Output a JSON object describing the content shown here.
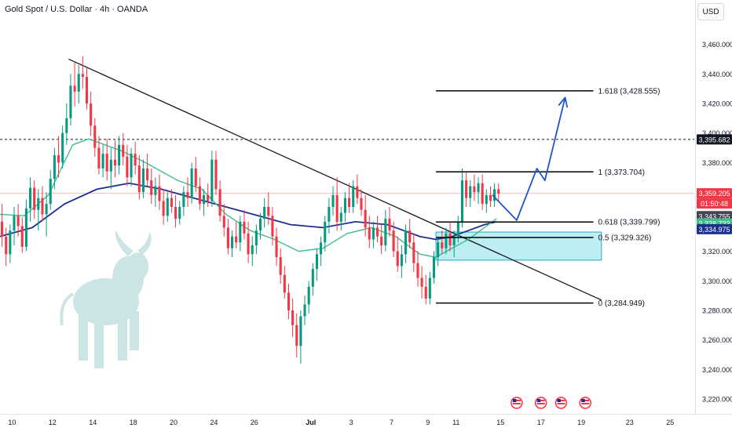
{
  "header": {
    "title": "Gold Spot / U.S. Dollar · 4h · OANDA",
    "currency": "USD"
  },
  "colors": {
    "bull": "#089981",
    "bear": "#f23645",
    "ema_fast": "#3fbf8f",
    "ema_slow": "#1c2f8c",
    "projection": "#1e56c8",
    "zone": "#b2ebee",
    "zone_border": "#2aa8c7",
    "fib": "#000000",
    "price_line": "#f23645"
  },
  "chart_data": {
    "type": "candlestick",
    "symbol": "Gold Spot / U.S. Dollar",
    "timeframe": "4h",
    "ylim": [
      3210,
      3490
    ],
    "y_ticks": [
      3220,
      3240,
      3260,
      3280,
      3300,
      3320,
      3340,
      3360,
      3380,
      3400,
      3420,
      3440,
      3460
    ],
    "y_tick_labels": [
      "3,220.000",
      "3,240.000",
      "3,260.000",
      "3,280.000",
      "3,300.000",
      "3,320.000",
      "3,340.000",
      "3,360.000",
      "3,380.000",
      "3,400.000",
      "3,420.000",
      "3,440.000",
      "3,460.000"
    ],
    "x_labels": [
      "10",
      "12",
      "14",
      "18",
      "20",
      "24",
      "26",
      "Jul",
      "3",
      "7",
      "9",
      "11",
      "15",
      "17",
      "19",
      "23",
      "25"
    ],
    "x_extent": [
      0,
      172
    ],
    "x_label_index": [
      3,
      13,
      23,
      33,
      43,
      53,
      63,
      77,
      87,
      97,
      106,
      113,
      124,
      134,
      144,
      156,
      166
    ],
    "candles_ohlc": [
      [
        3340,
        3352,
        3323,
        3330
      ],
      [
        3330,
        3336,
        3310,
        3318
      ],
      [
        3318,
        3338,
        3312,
        3334
      ],
      [
        3334,
        3350,
        3324,
        3344
      ],
      [
        3344,
        3352,
        3330,
        3337
      ],
      [
        3337,
        3343,
        3319,
        3323
      ],
      [
        3323,
        3355,
        3320,
        3349
      ],
      [
        3349,
        3370,
        3340,
        3363
      ],
      [
        3363,
        3368,
        3342,
        3348
      ],
      [
        3348,
        3362,
        3334,
        3356
      ],
      [
        3356,
        3364,
        3340,
        3345
      ],
      [
        3345,
        3360,
        3330,
        3352
      ],
      [
        3352,
        3375,
        3348,
        3369
      ],
      [
        3369,
        3390,
        3362,
        3385
      ],
      [
        3385,
        3398,
        3370,
        3380
      ],
      [
        3380,
        3405,
        3376,
        3400
      ],
      [
        3400,
        3420,
        3392,
        3410
      ],
      [
        3410,
        3440,
        3405,
        3432
      ],
      [
        3432,
        3448,
        3418,
        3428
      ],
      [
        3428,
        3446,
        3420,
        3440
      ],
      [
        3440,
        3452,
        3430,
        3438
      ],
      [
        3438,
        3444,
        3416,
        3420
      ],
      [
        3420,
        3428,
        3398,
        3405
      ],
      [
        3405,
        3410,
        3384,
        3390
      ],
      [
        3390,
        3398,
        3372,
        3376
      ],
      [
        3376,
        3392,
        3370,
        3386
      ],
      [
        3386,
        3396,
        3368,
        3374
      ],
      [
        3374,
        3390,
        3362,
        3382
      ],
      [
        3382,
        3395,
        3370,
        3378
      ],
      [
        3378,
        3398,
        3372,
        3392
      ],
      [
        3392,
        3400,
        3378,
        3384
      ],
      [
        3384,
        3392,
        3364,
        3370
      ],
      [
        3370,
        3390,
        3364,
        3386
      ],
      [
        3386,
        3394,
        3372,
        3378
      ],
      [
        3378,
        3385,
        3355,
        3360
      ],
      [
        3360,
        3382,
        3356,
        3376
      ],
      [
        3376,
        3386,
        3364,
        3368
      ],
      [
        3368,
        3376,
        3352,
        3358
      ],
      [
        3358,
        3370,
        3350,
        3364
      ],
      [
        3364,
        3372,
        3348,
        3354
      ],
      [
        3354,
        3362,
        3338,
        3344
      ],
      [
        3344,
        3360,
        3340,
        3356
      ],
      [
        3356,
        3362,
        3346,
        3350
      ],
      [
        3350,
        3358,
        3336,
        3342
      ],
      [
        3342,
        3354,
        3338,
        3350
      ],
      [
        3350,
        3364,
        3344,
        3360
      ],
      [
        3360,
        3370,
        3350,
        3356
      ],
      [
        3356,
        3380,
        3352,
        3376
      ],
      [
        3376,
        3384,
        3360,
        3364
      ],
      [
        3364,
        3370,
        3348,
        3352
      ],
      [
        3352,
        3362,
        3344,
        3358
      ],
      [
        3358,
        3366,
        3350,
        3354
      ],
      [
        3354,
        3388,
        3350,
        3382
      ],
      [
        3382,
        3388,
        3358,
        3362
      ],
      [
        3362,
        3368,
        3340,
        3344
      ],
      [
        3344,
        3352,
        3330,
        3336
      ],
      [
        3336,
        3342,
        3318,
        3322
      ],
      [
        3322,
        3334,
        3316,
        3330
      ],
      [
        3330,
        3340,
        3322,
        3326
      ],
      [
        3326,
        3344,
        3320,
        3340
      ],
      [
        3340,
        3348,
        3328,
        3332
      ],
      [
        3332,
        3340,
        3312,
        3318
      ],
      [
        3318,
        3330,
        3310,
        3324
      ],
      [
        3324,
        3338,
        3318,
        3334
      ],
      [
        3334,
        3346,
        3328,
        3342
      ],
      [
        3342,
        3356,
        3336,
        3350
      ],
      [
        3350,
        3360,
        3338,
        3344
      ],
      [
        3344,
        3350,
        3324,
        3330
      ],
      [
        3330,
        3336,
        3310,
        3316
      ],
      [
        3316,
        3322,
        3298,
        3304
      ],
      [
        3304,
        3310,
        3288,
        3292
      ],
      [
        3292,
        3298,
        3274,
        3280
      ],
      [
        3280,
        3288,
        3262,
        3270
      ],
      [
        3270,
        3278,
        3248,
        3256
      ],
      [
        3256,
        3280,
        3244,
        3276
      ],
      [
        3276,
        3290,
        3270,
        3284
      ],
      [
        3284,
        3300,
        3278,
        3296
      ],
      [
        3296,
        3312,
        3290,
        3308
      ],
      [
        3308,
        3322,
        3300,
        3318
      ],
      [
        3318,
        3330,
        3310,
        3326
      ],
      [
        3326,
        3344,
        3320,
        3340
      ],
      [
        3340,
        3356,
        3332,
        3350
      ],
      [
        3350,
        3364,
        3344,
        3358
      ],
      [
        3358,
        3370,
        3334,
        3340
      ],
      [
        3340,
        3350,
        3334,
        3346
      ],
      [
        3346,
        3360,
        3340,
        3356
      ],
      [
        3356,
        3366,
        3346,
        3350
      ],
      [
        3350,
        3368,
        3346,
        3364
      ],
      [
        3364,
        3372,
        3352,
        3356
      ],
      [
        3356,
        3362,
        3344,
        3348
      ],
      [
        3348,
        3358,
        3330,
        3336
      ],
      [
        3336,
        3344,
        3322,
        3328
      ],
      [
        3328,
        3340,
        3322,
        3336
      ],
      [
        3336,
        3344,
        3326,
        3330
      ],
      [
        3330,
        3338,
        3318,
        3324
      ],
      [
        3324,
        3348,
        3320,
        3342
      ],
      [
        3342,
        3350,
        3330,
        3334
      ],
      [
        3334,
        3340,
        3316,
        3320
      ],
      [
        3320,
        3330,
        3306,
        3310
      ],
      [
        3310,
        3324,
        3302,
        3318
      ],
      [
        3318,
        3338,
        3312,
        3334
      ],
      [
        3334,
        3342,
        3322,
        3326
      ],
      [
        3326,
        3332,
        3306,
        3312
      ],
      [
        3312,
        3320,
        3296,
        3302
      ],
      [
        3302,
        3310,
        3288,
        3296
      ],
      [
        3296,
        3304,
        3284,
        3288
      ],
      [
        3288,
        3306,
        3284,
        3302
      ],
      [
        3302,
        3320,
        3298,
        3316
      ],
      [
        3316,
        3330,
        3310,
        3326
      ],
      [
        3326,
        3334,
        3318,
        3322
      ],
      [
        3322,
        3336,
        3318,
        3332
      ],
      [
        3332,
        3340,
        3320,
        3324
      ],
      [
        3324,
        3334,
        3316,
        3330
      ],
      [
        3330,
        3344,
        3326,
        3340
      ],
      [
        3340,
        3376,
        3336,
        3368
      ],
      [
        3368,
        3374,
        3350,
        3356
      ],
      [
        3356,
        3368,
        3350,
        3364
      ],
      [
        3364,
        3372,
        3354,
        3360
      ],
      [
        3360,
        3370,
        3352,
        3366
      ],
      [
        3366,
        3372,
        3348,
        3352
      ],
      [
        3352,
        3362,
        3346,
        3358
      ],
      [
        3358,
        3364,
        3350,
        3354
      ],
      [
        3354,
        3366,
        3350,
        3362
      ],
      [
        3362,
        3366,
        3354,
        3359
      ]
    ],
    "ema_fast_values": [
      [
        0,
        3345
      ],
      [
        6,
        3344
      ],
      [
        12,
        3358
      ],
      [
        18,
        3392
      ],
      [
        22,
        3396
      ],
      [
        30,
        3388
      ],
      [
        36,
        3380
      ],
      [
        44,
        3368
      ],
      [
        50,
        3362
      ],
      [
        56,
        3345
      ],
      [
        62,
        3334
      ],
      [
        68,
        3328
      ],
      [
        74,
        3320
      ],
      [
        80,
        3322
      ],
      [
        86,
        3332
      ],
      [
        92,
        3336
      ],
      [
        98,
        3330
      ],
      [
        104,
        3318
      ],
      [
        108,
        3316
      ],
      [
        112,
        3322
      ],
      [
        116,
        3328
      ],
      [
        120,
        3336
      ],
      [
        123,
        3342
      ]
    ],
    "ema_slow_values": [
      [
        0,
        3330
      ],
      [
        8,
        3336
      ],
      [
        16,
        3352
      ],
      [
        24,
        3362
      ],
      [
        32,
        3366
      ],
      [
        40,
        3362
      ],
      [
        48,
        3356
      ],
      [
        56,
        3350
      ],
      [
        64,
        3344
      ],
      [
        72,
        3338
      ],
      [
        80,
        3336
      ],
      [
        88,
        3340
      ],
      [
        96,
        3338
      ],
      [
        104,
        3330
      ],
      [
        108,
        3328
      ],
      [
        112,
        3330
      ],
      [
        116,
        3334
      ],
      [
        120,
        3338
      ],
      [
        123,
        3340
      ]
    ],
    "current_price": 3359.205,
    "dashed_level": 3395.682,
    "trendline": [
      [
        17,
        3450
      ],
      [
        149,
        3287
      ]
    ],
    "demand_zone": {
      "x": [
        108,
        149
      ],
      "y": [
        3314,
        3333
      ]
    },
    "fib_levels": [
      {
        "label": "1.618 (3,428.555)",
        "value": 3428.555
      },
      {
        "label": "1 (3,373.704)",
        "value": 3373.704
      },
      {
        "label": "0.618 (3,339.799)",
        "value": 3339.799
      },
      {
        "label": "0.5 (3,329.326)",
        "value": 3329.326
      },
      {
        "label": "0 (3,284.949)",
        "value": 3284.949
      }
    ],
    "fib_x": [
      108,
      147
    ],
    "projection_path": [
      [
        122,
        3358
      ],
      [
        128,
        3341
      ],
      [
        133,
        3376
      ],
      [
        135,
        3368
      ],
      [
        140,
        3424
      ]
    ],
    "event_icon_index": [
      128,
      134,
      139,
      145
    ],
    "price_labels": [
      {
        "text": "3,395.682",
        "value": 3395.682,
        "bg": "#131722",
        "fg": "#ffffff"
      },
      {
        "text": "3,359.205",
        "value": 3359.205,
        "bg": "#f23645",
        "fg": "#ffffff"
      },
      {
        "text": "01:50:48",
        "value": 3352.3,
        "bg": "#f23645",
        "fg": "#ffffff"
      },
      {
        "text": "3,343.755",
        "value": 3343.755,
        "bg": "#434651",
        "fg": "#ffffff"
      },
      {
        "text": "3,338.733",
        "value": 3338.733,
        "bg": "#3fbf8f",
        "fg": "#ffffff"
      },
      {
        "text": "3,334.975",
        "value": 3334.975,
        "bg": "#1c2f8c",
        "fg": "#ffffff"
      }
    ]
  }
}
